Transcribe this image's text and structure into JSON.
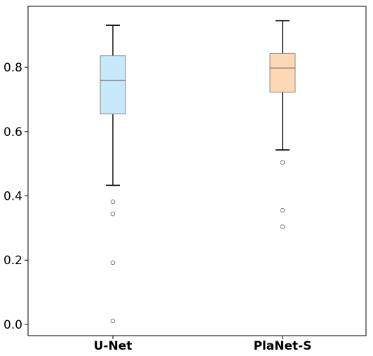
{
  "chart_data": {
    "type": "boxplot",
    "categories": [
      "U-Net",
      "PlaNet-S"
    ],
    "ylim": [
      -0.035,
      0.99
    ],
    "yticks": [
      0.0,
      0.2,
      0.4,
      0.6,
      0.8
    ],
    "ytick_labels": [
      "0.0",
      "0.2",
      "0.4",
      "0.6",
      "0.8"
    ],
    "grid": false,
    "boxes": [
      {
        "name": "U-Net",
        "color": "#c8e8fb",
        "whisker_low": 0.433,
        "q1": 0.655,
        "median": 0.76,
        "q3": 0.836,
        "whisker_high": 0.931,
        "outliers": [
          0.382,
          0.344,
          0.192,
          0.011
        ]
      },
      {
        "name": "PlaNet-S",
        "color": "#fed7b5",
        "whisker_low": 0.543,
        "q1": 0.723,
        "median": 0.798,
        "q3": 0.843,
        "whisker_high": 0.945,
        "outliers": [
          0.504,
          0.355,
          0.304
        ]
      }
    ]
  }
}
